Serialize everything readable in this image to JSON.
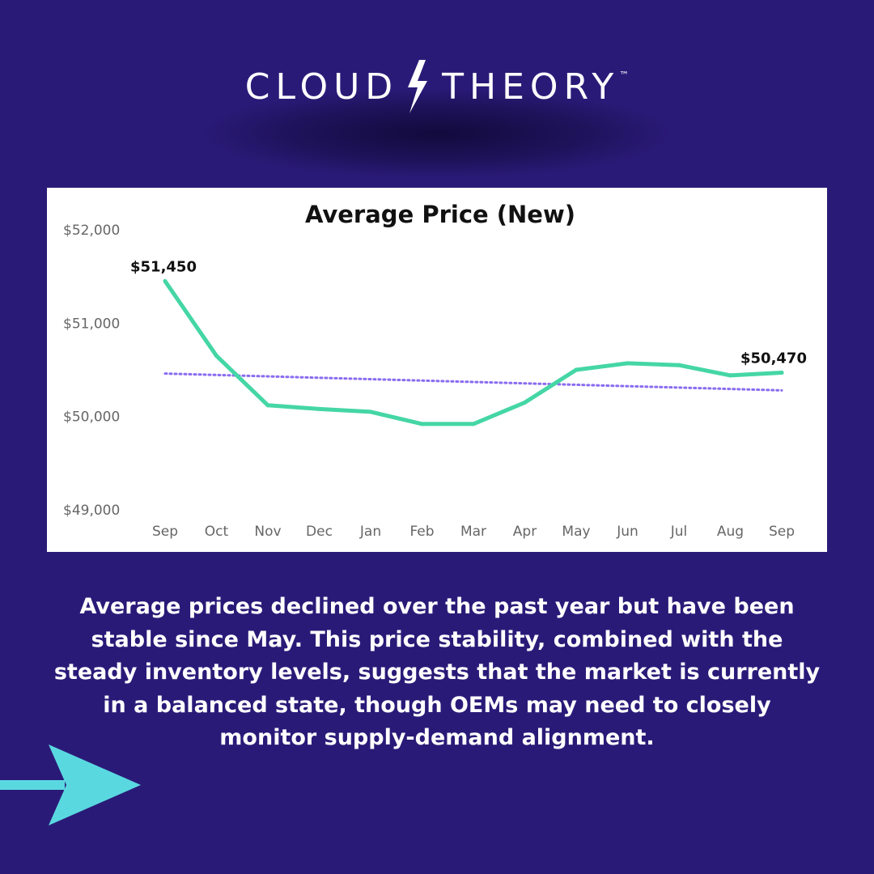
{
  "brand": {
    "left_word": "CLOUD",
    "right_word": "THEORY",
    "trademark": "™",
    "icon": "lightning-bolt-icon",
    "color": "#ffffff"
  },
  "colors": {
    "background": "#2a1a78",
    "line": "#45d6a6",
    "trend": "#8a6cf0",
    "arrow": "#5ad8e0",
    "card": "#ffffff"
  },
  "chart_data": {
    "type": "line",
    "title": "Average Price (New)",
    "categories": [
      "Sep",
      "Oct",
      "Nov",
      "Dec",
      "Jan",
      "Feb",
      "Mar",
      "Apr",
      "May",
      "Jun",
      "Jul",
      "Aug",
      "Sep"
    ],
    "series": [
      {
        "values": [
          51450,
          50650,
          50120,
          50080,
          50050,
          49920,
          49920,
          50150,
          50500,
          50570,
          50550,
          50440,
          50470
        ]
      }
    ],
    "trendline": {
      "style": "dotted",
      "start": 50460,
      "end": 50280
    },
    "ylim": [
      49000,
      52000
    ],
    "yticks": [
      49000,
      50000,
      51000,
      52000
    ],
    "ytick_labels": [
      "$49,000",
      "$50,000",
      "$51,000",
      "$52,000"
    ],
    "annotations": [
      {
        "index": 0,
        "text": "$51,450"
      },
      {
        "index": 12,
        "text": "$50,470"
      }
    ],
    "grid": false,
    "legend": "none",
    "xlabel": "",
    "ylabel": ""
  },
  "caption": {
    "lines": [
      "Average prices declined over the past year but have been",
      "stable since May. This price stability, combined with the",
      "steady inventory levels, suggests that the market is currently",
      "in a balanced state, though OEMs may need to closely",
      "monitor supply-demand alignment."
    ]
  },
  "arrow": {
    "icon": "right-arrow-icon"
  }
}
